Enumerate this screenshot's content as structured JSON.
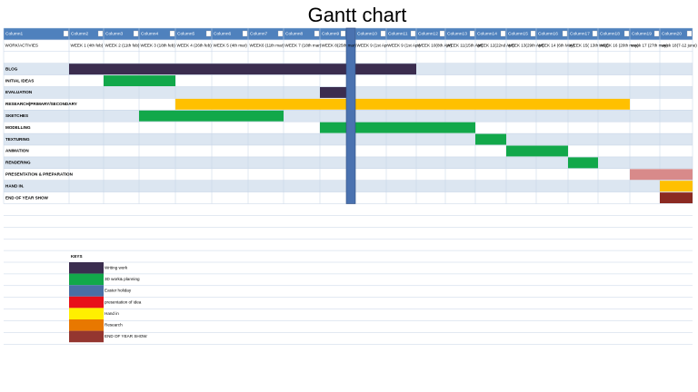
{
  "title": "Gantt chart",
  "headers": [
    "Column1",
    "Column2",
    "Column3",
    "Column4",
    "Column5",
    "Column6",
    "Column7",
    "Column8",
    "Column9",
    "Column10",
    "Column11",
    "Column12",
    "Column13",
    "Column14",
    "Column15",
    "Column16",
    "Column17",
    "Column18",
    "Column19",
    "Column20"
  ],
  "weeks": [
    "WORK/ACTIVIES",
    "WEEK 1 (4th feb)",
    "WEEK 2 (11th feb)",
    "WEEK 3 (18th feb)",
    "WEEK 4 (26th feb)",
    "WEEK 5 (4th mar)",
    "WEEK6 (11th mar)",
    "WEEK 7 (18th mar)",
    "WEEK 8(25th mar)",
    "WEEK 9 (1st Apr",
    "WEEK 9 (1st Apr)",
    "WEEK 10(8th Apr)",
    "WEEK 11(15th Apr)",
    "WEEK 12(22nd Apr)",
    "WEEK 13(29th Apr)",
    "WEEK 14 (6th May)",
    "WEEK 15( 13th may)",
    "WEEK 16 (20th may)",
    "week 17 (27th may)",
    "week 18(7-12 june)"
  ],
  "tasks": [
    "BLOG",
    "INITIAL IDEAS",
    "EVALUATION",
    "RESEARCH(PRIMARY/SECONDARY",
    "SKETCHES",
    "MODELLING",
    "TEXTURING",
    "ANIMATION",
    "RENDERING",
    "PRESENTATION & PREPARATION",
    "HAND IN.",
    "END OF YEAR SHOW"
  ],
  "keys": {
    "title": "KEYS",
    "items": [
      "Writing work",
      "3D work& planning",
      "Easter holiday",
      "presentation of idea",
      "Hand in",
      "Research",
      "END OF YEAR SHOW"
    ]
  }
}
